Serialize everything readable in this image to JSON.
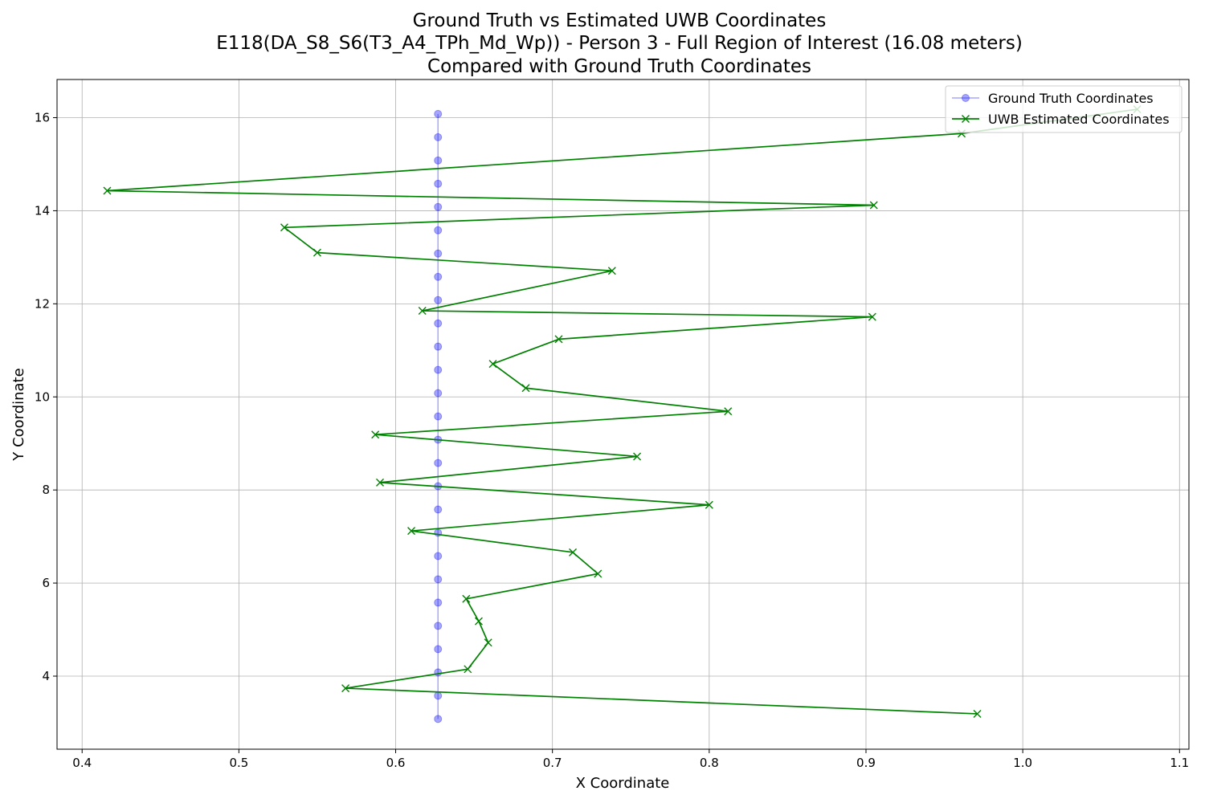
{
  "chart_data": {
    "type": "line",
    "title_lines": [
      "Ground Truth vs Estimated UWB Coordinates",
      "E118(DA_S8_S6(T3_A4_TPh_Md_Wp)) - Person 3 - Full Region of Interest (16.08 meters)",
      "Compared with Ground Truth Coordinates"
    ],
    "xlabel": "X Coordinate",
    "ylabel": "Y Coordinate",
    "xlim": [
      0.384,
      1.106
    ],
    "ylim": [
      2.43,
      16.82
    ],
    "xticks": [
      0.4,
      0.5,
      0.6,
      0.7,
      0.8,
      0.9,
      1.0,
      1.1
    ],
    "xtick_labels": [
      "0.4",
      "0.5",
      "0.6",
      "0.7",
      "0.8",
      "0.9",
      "1.0",
      "1.1"
    ],
    "yticks": [
      4,
      6,
      8,
      10,
      12,
      14,
      16
    ],
    "ytick_labels": [
      "4",
      "6",
      "8",
      "10",
      "12",
      "14",
      "16"
    ],
    "grid": true,
    "legend_position": "top-right",
    "series": [
      {
        "name": "Ground Truth Coordinates",
        "color": "#0000ff",
        "marker": "circle",
        "x": [
          0.627,
          0.627,
          0.627,
          0.627,
          0.627,
          0.627,
          0.627,
          0.627,
          0.627,
          0.627,
          0.627,
          0.627,
          0.627,
          0.627,
          0.627,
          0.627,
          0.627,
          0.627,
          0.627,
          0.627,
          0.627,
          0.627,
          0.627,
          0.627,
          0.627,
          0.627,
          0.627
        ],
        "y": [
          3.08,
          3.58,
          4.08,
          4.58,
          5.08,
          5.58,
          6.08,
          6.58,
          7.08,
          7.58,
          8.08,
          8.58,
          9.08,
          9.58,
          10.08,
          10.58,
          11.08,
          11.58,
          12.08,
          12.58,
          13.08,
          13.58,
          14.08,
          14.58,
          15.08,
          15.58,
          16.08
        ]
      },
      {
        "name": "UWB Estimated Coordinates",
        "color": "#008000",
        "marker": "x",
        "x": [
          0.971,
          0.568,
          0.646,
          0.659,
          0.653,
          0.645,
          0.729,
          0.713,
          0.61,
          0.8,
          0.59,
          0.754,
          0.587,
          0.812,
          0.683,
          0.662,
          0.704,
          0.904,
          0.617,
          0.738,
          0.55,
          0.529,
          0.905,
          0.416,
          0.961,
          1.073
        ],
        "y": [
          3.19,
          3.74,
          4.15,
          4.72,
          5.18,
          5.66,
          6.2,
          6.66,
          7.12,
          7.68,
          8.16,
          8.72,
          9.19,
          9.69,
          10.19,
          10.71,
          11.24,
          11.72,
          11.85,
          12.71,
          13.1,
          13.64,
          14.12,
          14.43,
          15.66,
          16.18
        ]
      }
    ]
  }
}
